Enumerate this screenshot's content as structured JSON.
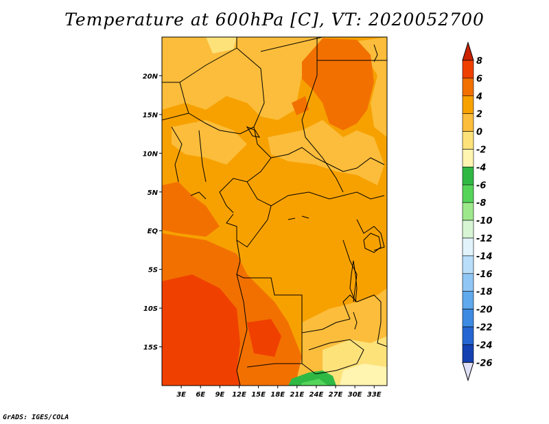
{
  "title": "Temperature at 600hPa [C], VT: 2020052700",
  "credit": "GrADS: IGES/COLA",
  "map": {
    "lat_ticks": [
      {
        "value": 20,
        "label": "20N"
      },
      {
        "value": 15,
        "label": "15N"
      },
      {
        "value": 10,
        "label": "10N"
      },
      {
        "value": 5,
        "label": "5N"
      },
      {
        "value": 0,
        "label": "EQ"
      },
      {
        "value": -5,
        "label": "5S"
      },
      {
        "value": -10,
        "label": "10S"
      },
      {
        "value": -15,
        "label": "15S"
      }
    ],
    "lon_ticks": [
      {
        "value": 3,
        "label": "3E"
      },
      {
        "value": 6,
        "label": "6E"
      },
      {
        "value": 9,
        "label": "9E"
      },
      {
        "value": 12,
        "label": "12E"
      },
      {
        "value": 15,
        "label": "15E"
      },
      {
        "value": 18,
        "label": "18E"
      },
      {
        "value": 21,
        "label": "21E"
      },
      {
        "value": 24,
        "label": "24E"
      },
      {
        "value": 27,
        "label": "27E"
      },
      {
        "value": 30,
        "label": "30E"
      },
      {
        "value": 33,
        "label": "33E"
      }
    ],
    "lon_range": [
      0,
      35
    ],
    "lat_range": [
      -20,
      25
    ]
  },
  "colorbar": {
    "levels": [
      8,
      6,
      4,
      2,
      0,
      -2,
      -4,
      -6,
      -8,
      -10,
      -12,
      -14,
      -16,
      -18,
      -20,
      -22,
      -24,
      -26
    ],
    "colors": [
      "#cc2200",
      "#f04000",
      "#f27000",
      "#f7a100",
      "#fbbd3b",
      "#fde27a",
      "#fff4b0",
      "#2fb844",
      "#55d45a",
      "#9ee88c",
      "#d7f5d3",
      "#e2f3fb",
      "#b8defa",
      "#8fc6f5",
      "#5fa9ec",
      "#3d8ae2",
      "#2565d2",
      "#1440b2",
      "#0a1e80"
    ],
    "under_color": "#e0e0f8"
  }
}
